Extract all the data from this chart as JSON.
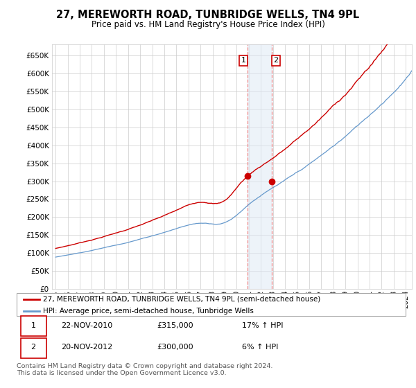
{
  "title": "27, MEREWORTH ROAD, TUNBRIDGE WELLS, TN4 9PL",
  "subtitle": "Price paid vs. HM Land Registry's House Price Index (HPI)",
  "ylim": [
    0,
    680000
  ],
  "yticks": [
    0,
    50000,
    100000,
    150000,
    200000,
    250000,
    300000,
    350000,
    400000,
    450000,
    500000,
    550000,
    600000,
    650000
  ],
  "xlim_start": 1994.7,
  "xlim_end": 2024.5,
  "transaction1_date": 2010.9,
  "transaction1_price": 315000,
  "transaction2_date": 2012.9,
  "transaction2_price": 300000,
  "line1_color": "#cc0000",
  "line2_color": "#6699cc",
  "marker_color": "#cc0000",
  "shade_color": "#dde8f5",
  "shade_alpha": 0.5,
  "vline_color": "#ee8888",
  "legend1_label": "27, MEREWORTH ROAD, TUNBRIDGE WELLS, TN4 9PL (semi-detached house)",
  "legend2_label": "HPI: Average price, semi-detached house, Tunbridge Wells",
  "table_row1": [
    "1",
    "22-NOV-2010",
    "£315,000",
    "17% ↑ HPI"
  ],
  "table_row2": [
    "2",
    "20-NOV-2012",
    "£300,000",
    "6% ↑ HPI"
  ],
  "footer": "Contains HM Land Registry data © Crown copyright and database right 2024.\nThis data is licensed under the Open Government Licence v3.0.",
  "background_color": "#ffffff",
  "grid_color": "#cccccc"
}
